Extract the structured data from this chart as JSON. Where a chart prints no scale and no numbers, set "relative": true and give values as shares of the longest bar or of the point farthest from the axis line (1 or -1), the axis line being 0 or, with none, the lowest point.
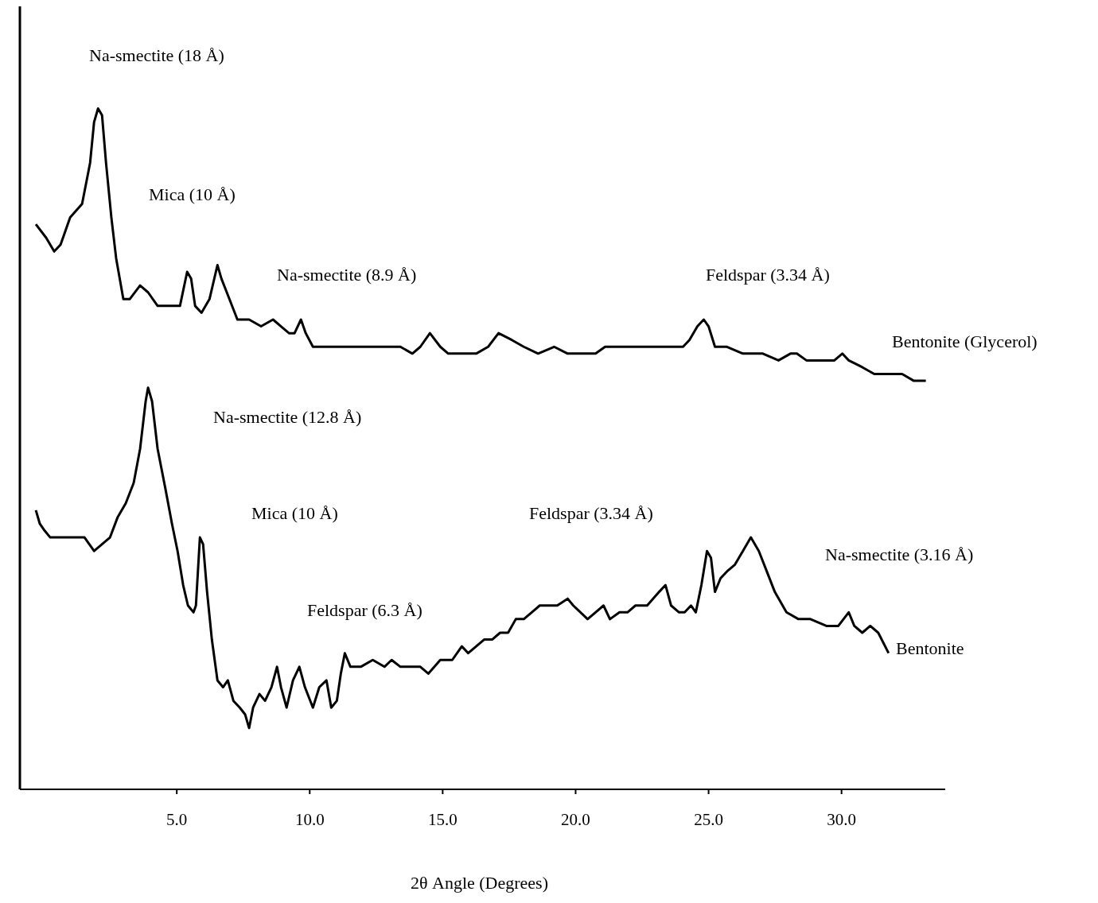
{
  "chart_data": {
    "type": "line",
    "relative": true,
    "xlabel": "2θ Angle (Degrees)",
    "xlim": [
      -0.9,
      33.9
    ],
    "xticks": [
      {
        "value": 5,
        "label": "5.0"
      },
      {
        "value": 10,
        "label": "10.0"
      },
      {
        "value": 15,
        "label": "15.0"
      },
      {
        "value": 20,
        "label": "20.0"
      },
      {
        "value": 25,
        "label": "25.0"
      },
      {
        "value": 30,
        "label": "30.0"
      }
    ],
    "tick_labels": "x",
    "grid": false,
    "legend": false,
    "marker": "none",
    "line_style": "solid",
    "annotations": [
      "Na-smectite (18 Å)",
      "Mica (10 Å)",
      "Na-smectite (8.9 Å)",
      "Feldspar (3.34 Å)",
      "Na-smectite (12.8 Å)",
      "Mica (10 Å)",
      "Feldspar (3.34 Å)",
      "Feldspar (6.3 Å)",
      "Na-smectite (3.16 Å)"
    ],
    "series": [
      {
        "name": "Bentonite (Glycerol)",
        "color": "#000000",
        "x": [
          -0.3,
          0.09,
          0.39,
          0.63,
          0.99,
          1.44,
          1.74,
          1.89,
          2.04,
          2.19,
          2.34,
          2.54,
          2.72,
          2.99,
          3.23,
          3.62,
          3.92,
          4.28,
          4.58,
          4.88,
          5.12,
          5.39,
          5.54,
          5.69,
          5.93,
          6.23,
          6.53,
          6.68,
          6.98,
          7.28,
          7.72,
          8.17,
          8.62,
          8.92,
          9.22,
          9.43,
          9.67,
          9.85,
          10.12,
          10.57,
          11.02,
          11.47,
          12.07,
          12.66,
          13.41,
          13.86,
          14.16,
          14.52,
          14.91,
          15.21,
          15.81,
          16.26,
          16.71,
          17.1,
          17.6,
          18.05,
          18.59,
          19.19,
          19.7,
          20.3,
          20.75,
          21.11,
          21.65,
          22.4,
          22.99,
          23.59,
          24.04,
          24.28,
          24.58,
          24.82,
          25.0,
          25.24,
          25.69,
          26.29,
          27.04,
          27.63,
          28.08,
          28.32,
          28.68,
          29.13,
          29.73,
          30.03,
          30.27,
          30.78,
          31.23,
          31.83,
          32.28,
          32.72,
          33.17
        ],
        "values": [
          0.83,
          0.81,
          0.79,
          0.8,
          0.84,
          0.86,
          0.92,
          0.98,
          1.0,
          0.99,
          0.92,
          0.84,
          0.78,
          0.72,
          0.72,
          0.74,
          0.73,
          0.71,
          0.71,
          0.71,
          0.71,
          0.76,
          0.75,
          0.71,
          0.7,
          0.72,
          0.77,
          0.75,
          0.72,
          0.69,
          0.69,
          0.68,
          0.69,
          0.68,
          0.67,
          0.67,
          0.69,
          0.67,
          0.65,
          0.65,
          0.65,
          0.65,
          0.65,
          0.65,
          0.65,
          0.64,
          0.65,
          0.67,
          0.65,
          0.64,
          0.64,
          0.64,
          0.65,
          0.67,
          0.66,
          0.65,
          0.64,
          0.65,
          0.64,
          0.64,
          0.64,
          0.65,
          0.65,
          0.65,
          0.65,
          0.65,
          0.65,
          0.66,
          0.68,
          0.69,
          0.68,
          0.65,
          0.65,
          0.64,
          0.64,
          0.63,
          0.64,
          0.64,
          0.63,
          0.63,
          0.63,
          0.64,
          0.63,
          0.62,
          0.61,
          0.61,
          0.61,
          0.6,
          0.6
        ]
      },
      {
        "name": "Bentonite",
        "color": "#000000",
        "x": [
          -0.3,
          -0.15,
          0.03,
          0.24,
          0.54,
          0.93,
          1.23,
          1.53,
          1.89,
          2.19,
          2.49,
          2.78,
          3.08,
          3.38,
          3.62,
          3.83,
          3.92,
          4.07,
          4.28,
          4.58,
          4.82,
          5.03,
          5.24,
          5.42,
          5.63,
          5.72,
          5.87,
          5.99,
          6.14,
          6.32,
          6.53,
          6.74,
          6.92,
          7.13,
          7.37,
          7.57,
          7.72,
          7.87,
          8.11,
          8.32,
          8.56,
          8.77,
          8.92,
          9.13,
          9.37,
          9.61,
          9.82,
          10.12,
          10.36,
          10.63,
          10.81,
          11.02,
          11.17,
          11.32,
          11.53,
          11.92,
          12.37,
          12.81,
          13.08,
          13.41,
          13.86,
          14.16,
          14.46,
          14.91,
          15.36,
          15.72,
          15.96,
          16.26,
          16.56,
          16.86,
          17.16,
          17.46,
          17.75,
          18.05,
          18.35,
          18.65,
          18.95,
          19.31,
          19.7,
          19.91,
          20.45,
          20.75,
          21.05,
          21.29,
          21.65,
          21.95,
          22.25,
          22.69,
          23.14,
          23.38,
          23.59,
          23.89,
          24.1,
          24.34,
          24.52,
          24.73,
          24.94,
          25.09,
          25.24,
          25.45,
          25.69,
          25.99,
          26.29,
          26.59,
          26.89,
          27.19,
          27.49,
          27.93,
          28.38,
          28.83,
          29.43,
          29.88,
          30.27,
          30.48,
          30.78,
          31.08,
          31.38,
          31.77
        ],
        "values": [
          0.41,
          0.39,
          0.38,
          0.37,
          0.37,
          0.37,
          0.37,
          0.37,
          0.35,
          0.36,
          0.37,
          0.4,
          0.42,
          0.45,
          0.5,
          0.57,
          0.59,
          0.57,
          0.5,
          0.44,
          0.39,
          0.35,
          0.3,
          0.27,
          0.26,
          0.27,
          0.37,
          0.36,
          0.29,
          0.22,
          0.16,
          0.15,
          0.16,
          0.13,
          0.12,
          0.11,
          0.09,
          0.12,
          0.14,
          0.13,
          0.15,
          0.18,
          0.15,
          0.12,
          0.16,
          0.18,
          0.15,
          0.12,
          0.15,
          0.16,
          0.12,
          0.13,
          0.17,
          0.2,
          0.18,
          0.18,
          0.19,
          0.18,
          0.19,
          0.18,
          0.18,
          0.18,
          0.17,
          0.19,
          0.19,
          0.21,
          0.2,
          0.21,
          0.22,
          0.22,
          0.23,
          0.23,
          0.25,
          0.25,
          0.26,
          0.27,
          0.27,
          0.27,
          0.28,
          0.27,
          0.25,
          0.26,
          0.27,
          0.25,
          0.26,
          0.26,
          0.27,
          0.27,
          0.29,
          0.3,
          0.27,
          0.26,
          0.26,
          0.27,
          0.26,
          0.3,
          0.35,
          0.34,
          0.29,
          0.31,
          0.32,
          0.33,
          0.35,
          0.37,
          0.35,
          0.32,
          0.29,
          0.26,
          0.25,
          0.25,
          0.24,
          0.24,
          0.26,
          0.24,
          0.23,
          0.24,
          0.23,
          0.2
        ]
      }
    ]
  }
}
